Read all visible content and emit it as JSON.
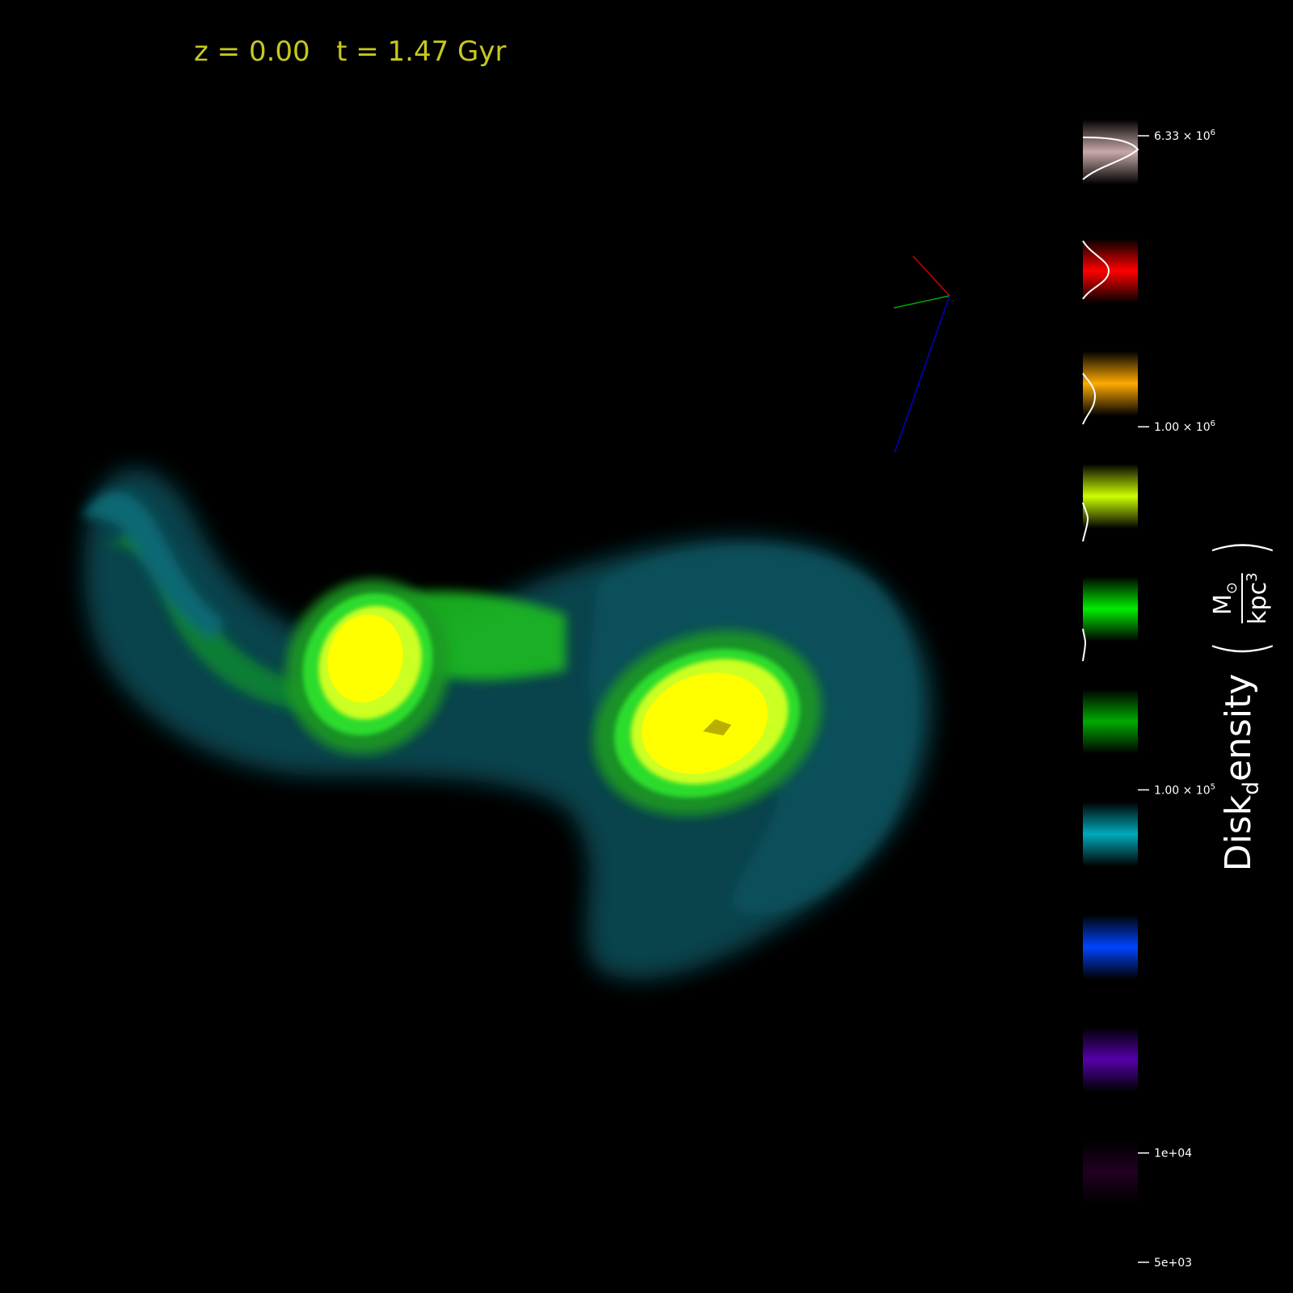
{
  "header": {
    "redshift_text": "z = 0.00",
    "time_text": "t = 1.47 Gyr"
  },
  "colorbar": {
    "field_name": "Disk",
    "field_subscript": "d",
    "field_name_rest": "ensity",
    "unit_numerator": "M",
    "unit_numerator_symbol": "⊙",
    "unit_denominator": "kpc",
    "unit_denominator_exp": "3",
    "ticks": [
      {
        "label_base": "6.33 × 10",
        "label_exp": "6",
        "value": 6330000
      },
      {
        "label_base": "1.00 × 10",
        "label_exp": "6",
        "value": 1000000
      },
      {
        "label_base": "1.00 × 10",
        "label_exp": "5",
        "value": 100000
      },
      {
        "label_base": "1e+04",
        "label_exp": "",
        "value": 10000
      },
      {
        "label_base": "5e+03",
        "label_exp": "",
        "value": 5000
      }
    ],
    "bands": [
      {
        "color": "#c8a8a8",
        "name": "pinkish-white"
      },
      {
        "color": "#ff0000",
        "name": "red"
      },
      {
        "color": "#ffaa00",
        "name": "orange"
      },
      {
        "color": "#ccff00",
        "name": "yellow-green"
      },
      {
        "color": "#00ee00",
        "name": "green"
      },
      {
        "color": "#00aa00",
        "name": "dark-green"
      },
      {
        "color": "#00aabb",
        "name": "teal"
      },
      {
        "color": "#0044ff",
        "name": "blue"
      },
      {
        "color": "#5500aa",
        "name": "purple"
      },
      {
        "color": "#220022",
        "name": "dark-violet"
      }
    ],
    "scale": "log"
  },
  "axes_triad": {
    "x_color": "#cc0000",
    "y_color": "#00aa00",
    "z_color": "#0000cc"
  },
  "colors": {
    "background": "#000000",
    "header_text": "#c8c81e",
    "galaxy_core": "#ffff00",
    "galaxy_ring": "#22ee22",
    "galaxy_halo": "#0a6e6e"
  }
}
